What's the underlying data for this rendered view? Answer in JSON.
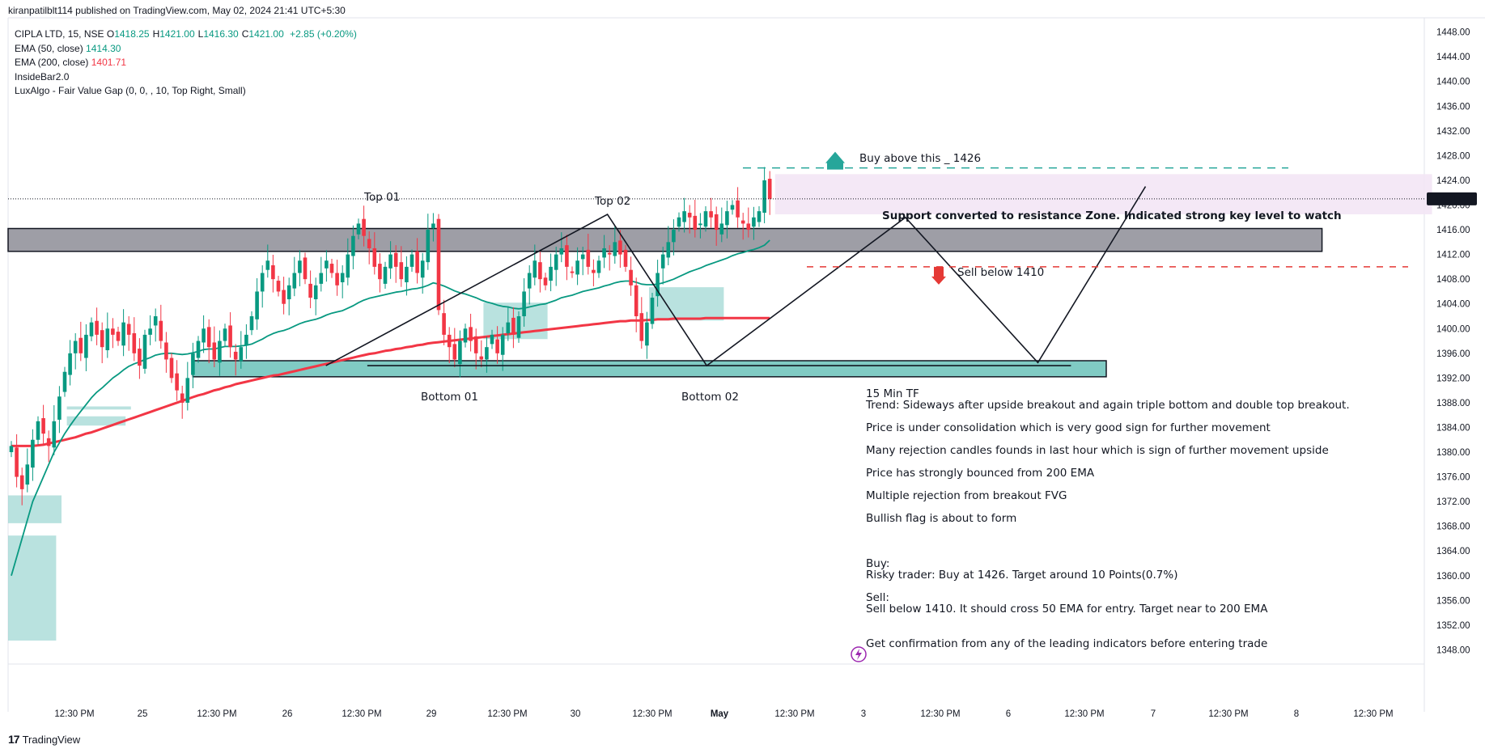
{
  "header": {
    "published": "kiranpatilblt114 published on TradingView.com, May 02, 2024 21:41 UTC+5:30"
  },
  "legend": {
    "symbol": "CIPLA LTD, 15, NSE",
    "ohlc": [
      {
        "k": "O",
        "v": "1418.25"
      },
      {
        "k": "H",
        "v": "1421.00"
      },
      {
        "k": "L",
        "v": "1416.30"
      },
      {
        "k": "C",
        "v": "1421.00"
      }
    ],
    "change": "+2.85 (+0.20%)",
    "ema50_label": "EMA (50, close)",
    "ema50_value": "1414.30",
    "ema200_label": "EMA (200, close)",
    "ema200_value": "1401.71",
    "insidebar": "InsideBar2.0",
    "luxalgo": "LuxAlgo - Fair Value Gap (0, 0, , 10, Top Right, Small)"
  },
  "brand": {
    "name": "TradingView"
  },
  "colors": {
    "up": "#089981",
    "down": "#f23645",
    "ema50": "#089981",
    "ema200": "#f23645",
    "fvg": "#80cbc4",
    "zone_purple": "#f3e5f5",
    "buy": "#26a69a",
    "sell": "#e53935",
    "purple_text": "#9c27b0"
  },
  "chart_data": {
    "type": "candlestick",
    "symbol": "CIPLA LTD",
    "interval": "15",
    "exchange": "NSE",
    "ylim": [
      1344,
      1449
    ],
    "y_ticks": [
      1448,
      1444,
      1440,
      1436,
      1432,
      1428,
      1424,
      1420,
      1416,
      1412,
      1408,
      1404,
      1400,
      1396,
      1392,
      1388,
      1384,
      1380,
      1376,
      1372,
      1368,
      1364,
      1360,
      1356,
      1352,
      1348
    ],
    "x_ticks": [
      "12:30 PM",
      "25",
      "12:30 PM",
      "26",
      "12:30 PM",
      "29",
      "12:30 PM",
      "30",
      "12:30 PM",
      "May",
      "12:30 PM",
      "3",
      "12:30 PM",
      "6",
      "12:30 PM",
      "7",
      "12:30 PM",
      "8",
      "12:30 PM"
    ],
    "x_tick_bold": [
      false,
      false,
      false,
      false,
      false,
      false,
      false,
      false,
      false,
      true,
      false,
      false,
      false,
      false,
      false,
      false,
      false,
      false,
      false
    ],
    "last_price": "1421.00",
    "closes": [
      1381,
      1376,
      1374,
      1378,
      1382,
      1385,
      1383,
      1381,
      1385,
      1389,
      1393,
      1396,
      1398,
      1396,
      1399,
      1401,
      1399,
      1397,
      1400,
      1399,
      1398,
      1401,
      1399,
      1396,
      1394,
      1399,
      1400,
      1402,
      1398,
      1395,
      1392,
      1390,
      1388,
      1392,
      1396,
      1398,
      1400,
      1397,
      1395,
      1398,
      1400,
      1397,
      1395,
      1397,
      1399,
      1402,
      1406,
      1409,
      1411,
      1408,
      1406,
      1404,
      1407,
      1409,
      1411,
      1408,
      1405,
      1407,
      1409,
      1411,
      1409,
      1407,
      1409,
      1412,
      1415,
      1417,
      1415,
      1413,
      1410,
      1408,
      1410,
      1412,
      1410,
      1408,
      1410,
      1412,
      1409,
      1411,
      1416,
      1417,
      1403,
      1399,
      1397,
      1395,
      1398,
      1400,
      1398,
      1396,
      1395,
      1397,
      1399,
      1396,
      1399,
      1401,
      1399,
      1402,
      1406,
      1409,
      1411,
      1408,
      1407,
      1410,
      1412,
      1413,
      1410,
      1409,
      1411,
      1412,
      1410,
      1409,
      1411,
      1413,
      1412,
      1414,
      1412,
      1410,
      1407,
      1402,
      1398,
      1401,
      1405,
      1409,
      1412,
      1414,
      1416,
      1418,
      1419,
      1418,
      1416,
      1417,
      1419,
      1418,
      1416,
      1417,
      1419,
      1420,
      1418,
      1417,
      1416,
      1418,
      1419,
      1424,
      1421
    ],
    "ema50": [
      1360,
      1363,
      1366,
      1369,
      1372,
      1374,
      1376,
      1378,
      1380,
      1381.5,
      1383,
      1384.3,
      1385.5,
      1386.6,
      1387.7,
      1388.8,
      1389.7,
      1390.4,
      1391.2,
      1392,
      1392.6,
      1393.3,
      1393.9,
      1394.3,
      1394.6,
      1395,
      1395.3,
      1395.7,
      1395.9,
      1396,
      1396,
      1395.9,
      1395.8,
      1395.9,
      1396.1,
      1396.3,
      1396.6,
      1396.7,
      1396.7,
      1396.9,
      1397.1,
      1397.1,
      1397.1,
      1397.2,
      1397.3,
      1397.5,
      1397.9,
      1398.3,
      1398.8,
      1399.2,
      1399.5,
      1399.7,
      1400,
      1400.4,
      1400.8,
      1401.1,
      1401.3,
      1401.5,
      1401.8,
      1402.2,
      1402.5,
      1402.7,
      1402.9,
      1403.3,
      1403.7,
      1404.2,
      1404.6,
      1404.9,
      1405.1,
      1405.3,
      1405.5,
      1405.7,
      1405.9,
      1406,
      1406.2,
      1406.4,
      1406.5,
      1406.7,
      1407,
      1407.4,
      1407.2,
      1406.9,
      1406.5,
      1406.1,
      1405.8,
      1405.6,
      1405.3,
      1405,
      1404.6,
      1404.3,
      1404.1,
      1403.8,
      1403.6,
      1403.5,
      1403.3,
      1403.2,
      1403.3,
      1403.5,
      1403.7,
      1403.9,
      1404,
      1404.3,
      1404.6,
      1405,
      1405.2,
      1405.4,
      1405.7,
      1406,
      1406.2,
      1406.4,
      1406.6,
      1406.9,
      1407.1,
      1407.4,
      1407.6,
      1407.7,
      1407.7,
      1407.5,
      1407.2,
      1407.1,
      1407.1,
      1407.2,
      1407.4,
      1407.7,
      1408,
      1408.4,
      1408.8,
      1409.2,
      1409.5,
      1409.8,
      1410.2,
      1410.5,
      1410.8,
      1411.1,
      1411.4,
      1411.8,
      1412.1,
      1412.3,
      1412.6,
      1412.8,
      1413.1,
      1413.5,
      1414.3
    ],
    "ema200": [
      1381,
      1381,
      1381,
      1381,
      1381,
      1381.1,
      1381.2,
      1381.4,
      1381.6,
      1381.8,
      1382,
      1382.2,
      1382.4,
      1382.7,
      1383,
      1383.2,
      1383.5,
      1383.8,
      1384.1,
      1384.4,
      1384.7,
      1385,
      1385.3,
      1385.6,
      1385.9,
      1386.2,
      1386.5,
      1386.8,
      1387.1,
      1387.4,
      1387.7,
      1388,
      1388.3,
      1388.6,
      1388.9,
      1389.2,
      1389.4,
      1389.7,
      1390,
      1390.2,
      1390.5,
      1390.7,
      1391,
      1391.2,
      1391.4,
      1391.6,
      1391.8,
      1392,
      1392.2,
      1392.4,
      1392.5,
      1392.7,
      1392.9,
      1393.1,
      1393.3,
      1393.5,
      1393.7,
      1393.9,
      1394.1,
      1394.3,
      1394.5,
      1394.7,
      1394.9,
      1395.1,
      1395.3,
      1395.5,
      1395.7,
      1395.9,
      1396,
      1396.2,
      1396.4,
      1396.5,
      1396.7,
      1396.8,
      1397,
      1397.1,
      1397.3,
      1397.4,
      1397.6,
      1397.7,
      1397.8,
      1397.9,
      1398,
      1398.1,
      1398.2,
      1398.3,
      1398.4,
      1398.5,
      1398.6,
      1398.7,
      1398.8,
      1398.9,
      1399,
      1399.1,
      1399.2,
      1399.3,
      1399.4,
      1399.5,
      1399.6,
      1399.7,
      1399.8,
      1399.9,
      1400,
      1400.1,
      1400.2,
      1400.3,
      1400.4,
      1400.5,
      1400.6,
      1400.7,
      1400.8,
      1400.9,
      1401,
      1401.1,
      1401.2,
      1401.2,
      1401.3,
      1401.3,
      1401.3,
      1401.4,
      1401.4,
      1401.5,
      1401.5,
      1401.5,
      1401.6,
      1401.6,
      1401.6,
      1401.6,
      1401.6,
      1401.6,
      1401.7,
      1401.7,
      1401.7,
      1401.7,
      1401.7,
      1401.7,
      1401.7,
      1401.7,
      1401.7,
      1401.7,
      1401.7,
      1401.7,
      1401.71
    ],
    "zones": {
      "resistance": {
        "bar_start": 0,
        "bar_end": 246,
        "y_top": 1416.2,
        "y_bottom": 1412.5
      },
      "support": {
        "bar_start": 34,
        "bar_end": 205,
        "y_top": 1394.8,
        "y_bottom": 1392.2
      },
      "purple": {
        "bar_start": 143,
        "bar_end": 266,
        "y_top": 1425.0,
        "y_bottom": 1418.5
      }
    },
    "fvg_boxes": [
      {
        "bar_start": 0,
        "bar_end": 10,
        "y_top": 1373.0,
        "y_bottom": 1368.5
      },
      {
        "bar_start": 0,
        "bar_end": 9,
        "y_top": 1366.5,
        "y_bottom": 1349.5
      },
      {
        "bar_start": 11,
        "bar_end": 22,
        "y_top": 1385.8,
        "y_bottom": 1384.3
      },
      {
        "bar_start": 11,
        "bar_end": 23,
        "y_top": 1387.4,
        "y_bottom": 1386.9
      },
      {
        "bar_start": 89,
        "bar_end": 101,
        "y_top": 1404.2,
        "y_bottom": 1398.3
      },
      {
        "bar_start": 120,
        "bar_end": 134,
        "y_top": 1406.7,
        "y_bottom": 1401.3
      }
    ],
    "pattern_lines": [
      {
        "points": [
          [
            38,
            1394
          ],
          [
            72,
            1418.5
          ],
          [
            84,
            1394
          ],
          [
            108,
            1418
          ],
          [
            124,
            1394.5
          ],
          [
            137,
            1423
          ]
        ]
      },
      {
        "points": [
          [
            128,
            1394
          ],
          [
            43,
            1394
          ]
        ]
      }
    ],
    "buy_level": 1426,
    "sell_level": 1410,
    "annotations": {
      "top01": "Top 01",
      "top02": "Top 02",
      "bottom01": "Bottom 01",
      "bottom02": "Bottom 02",
      "buy": "Buy above this _ 1426",
      "sell": "Sell below 1410",
      "zone": "Support converted to resistance Zone. Indicated strong key level to watch"
    },
    "notes": [
      "15 Min TF",
      "Trend: Sideways after upside breakout and again triple bottom and double top breakout.",
      "Price is under consolidation which is very good sign for further movement",
      "Many rejection candles founds in last hour which is sign of further movement upside",
      "Price has strongly bounced from 200 EMA",
      "Multiple rejection from breakout FVG",
      "Bullish flag is about to form",
      "Buy:",
      "Risky trader: Buy at 1426. Target around 10 Points(0.7%)",
      "Sell:",
      "Sell below 1410. It should cross 50 EMA for entry. Target near to 200 EMA",
      "Get confirmation from any of the leading indicators before entering trade"
    ]
  }
}
